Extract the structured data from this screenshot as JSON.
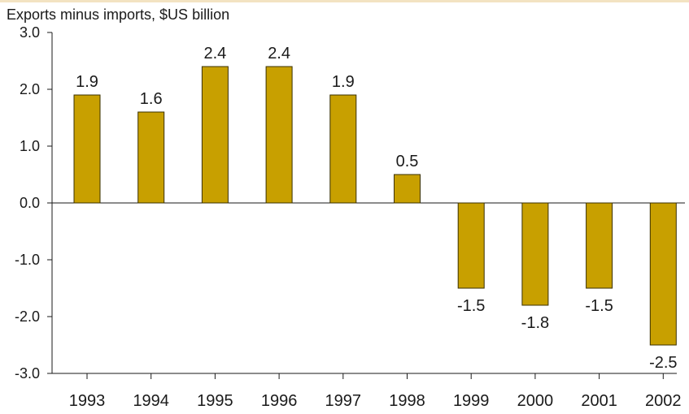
{
  "chart_data": {
    "type": "bar",
    "title": "Exports minus imports, $US billion",
    "xlabel": "",
    "ylabel": "",
    "categories": [
      "1993",
      "1994",
      "1995",
      "1996",
      "1997",
      "1998",
      "1999",
      "2000",
      "2001",
      "2002"
    ],
    "values": [
      1.9,
      1.6,
      2.4,
      2.4,
      1.9,
      0.5,
      -1.5,
      -1.8,
      -1.5,
      -2.5
    ],
    "value_labels": [
      "1.9",
      "1.6",
      "2.4",
      "2.4",
      "1.9",
      "0.5",
      "-1.5",
      "-1.8",
      "-1.5",
      "-2.5"
    ],
    "ylim": [
      -3.0,
      3.0
    ],
    "yticks": [
      3.0,
      2.0,
      1.0,
      0.0,
      -1.0,
      -2.0,
      -3.0
    ],
    "ytick_labels": [
      "3.0",
      "2.0",
      "1.0",
      "0.0",
      "-1.0",
      "-2.0",
      "-3.0"
    ],
    "grid": false,
    "bar_color": "#c8a000",
    "bar_edge_color": "#3a3000"
  }
}
